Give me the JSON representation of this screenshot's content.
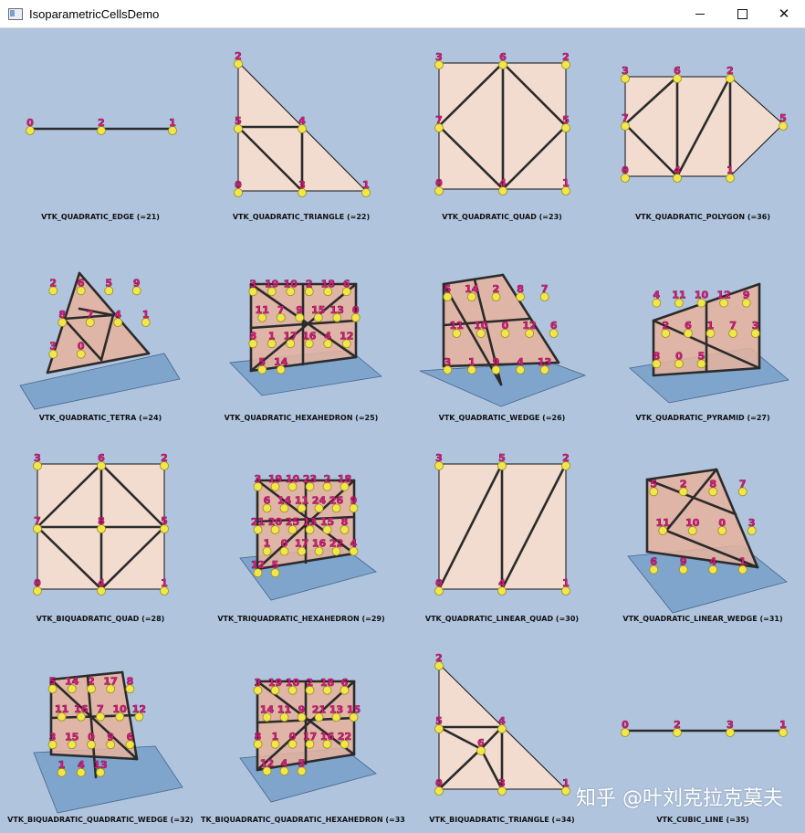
{
  "window": {
    "title": "IsoparametricCellsDemo",
    "controls": {
      "minimize_icon": "minimize-icon",
      "maximize_icon": "maximize-icon",
      "close_glyph": "✕"
    }
  },
  "colors": {
    "background": "#b0c4de",
    "cell_fill": "#f1dccf",
    "cell_fill_shaded": "#e7b39d",
    "edge": "#2b2b2b",
    "node_sphere": "#f1e64a",
    "label": "#d61a78",
    "plane": "#6f9bc7"
  },
  "cells": [
    {
      "caption": "VTK_QUADRATIC_EDGE (=21)",
      "labels": [
        "0",
        "2",
        "1"
      ]
    },
    {
      "caption": "VTK_QUADRATIC_TRIANGLE (=22)",
      "labels": [
        "2",
        "5",
        "4",
        "0",
        "3",
        "1"
      ]
    },
    {
      "caption": "VTK_QUADRATIC_QUAD (=23)",
      "labels": [
        "3",
        "6",
        "2",
        "7",
        "5",
        "0",
        "4",
        "1"
      ]
    },
    {
      "caption": "VTK_QUADRATIC_POLYGON (=36)",
      "labels": [
        "3",
        "6",
        "2",
        "7",
        "5",
        "0",
        "4",
        "1"
      ]
    },
    {
      "caption": "VTK_QUADRATIC_TETRA (=24)",
      "labels": [
        "2",
        "6",
        "5",
        "9",
        "8",
        "7",
        "4",
        "1",
        "3",
        "0"
      ]
    },
    {
      "caption": "VTK_QUADRATIC_HEXAHEDRON (=25)",
      "labels": [
        "3",
        "19",
        "10",
        "2",
        "18",
        "6",
        "11",
        "7",
        "9",
        "15",
        "13",
        "0",
        "8",
        "1",
        "17",
        "16",
        "4",
        "12",
        "5",
        "14"
      ]
    },
    {
      "caption": "VTK_QUADRATIC_WEDGE (=26)",
      "labels": [
        "5",
        "14",
        "2",
        "8",
        "7",
        "11",
        "10",
        "0",
        "12",
        "6",
        "3",
        "1",
        "9",
        "4",
        "13"
      ]
    },
    {
      "caption": "VTK_QUADRATIC_PYRAMID (=27)",
      "labels": [
        "4",
        "11",
        "10",
        "12",
        "9",
        "2",
        "6",
        "1",
        "7",
        "3",
        "8",
        "0",
        "5"
      ]
    },
    {
      "caption": "VTK_BIQUADRATIC_QUAD (=28)",
      "labels": [
        "3",
        "6",
        "2",
        "7",
        "8",
        "5",
        "0",
        "4",
        "1"
      ]
    },
    {
      "caption": "VTK_TRIQUADRATIC_HEXAHEDRON (=29)",
      "labels": [
        "3",
        "19",
        "10",
        "23",
        "2",
        "18",
        "6",
        "14",
        "11",
        "24",
        "26",
        "9",
        "21",
        "20",
        "25",
        "13",
        "15",
        "8",
        "1",
        "0",
        "17",
        "16",
        "22",
        "4",
        "12",
        "5"
      ]
    },
    {
      "caption": "VTK_QUADRATIC_LINEAR_QUAD (=30)",
      "labels": [
        "3",
        "5",
        "2",
        "0",
        "4",
        "1"
      ]
    },
    {
      "caption": "VTK_QUADRATIC_LINEAR_WEDGE (=31)",
      "labels": [
        "5",
        "2",
        "8",
        "7",
        "11",
        "10",
        "0",
        "3",
        "6",
        "9",
        "4",
        "1"
      ]
    },
    {
      "caption": "VTK_BIQUADRATIC_QUADRATIC_WEDGE (=32)",
      "labels": [
        "5",
        "14",
        "2",
        "17",
        "8",
        "11",
        "16",
        "7",
        "10",
        "12",
        "3",
        "15",
        "0",
        "9",
        "6",
        "1",
        "4",
        "13"
      ]
    },
    {
      "caption": "TK_BIQUADRATIC_QUADRATIC_HEXAHEDRON (=33",
      "labels": [
        "3",
        "19",
        "10",
        "2",
        "18",
        "6",
        "14",
        "11",
        "9",
        "21",
        "13",
        "15",
        "8",
        "1",
        "0",
        "17",
        "16",
        "22",
        "12",
        "4",
        "5"
      ]
    },
    {
      "caption": "VTK_BIQUADRATIC_TRIANGLE (=34)",
      "labels": [
        "2",
        "5",
        "4",
        "6",
        "0",
        "3",
        "1"
      ]
    },
    {
      "caption": "VTK_CUBIC_LINE (=35)",
      "labels": [
        "0",
        "2",
        "3",
        "1"
      ]
    }
  ],
  "watermark": "知乎 @叶刘克拉克莫夫"
}
